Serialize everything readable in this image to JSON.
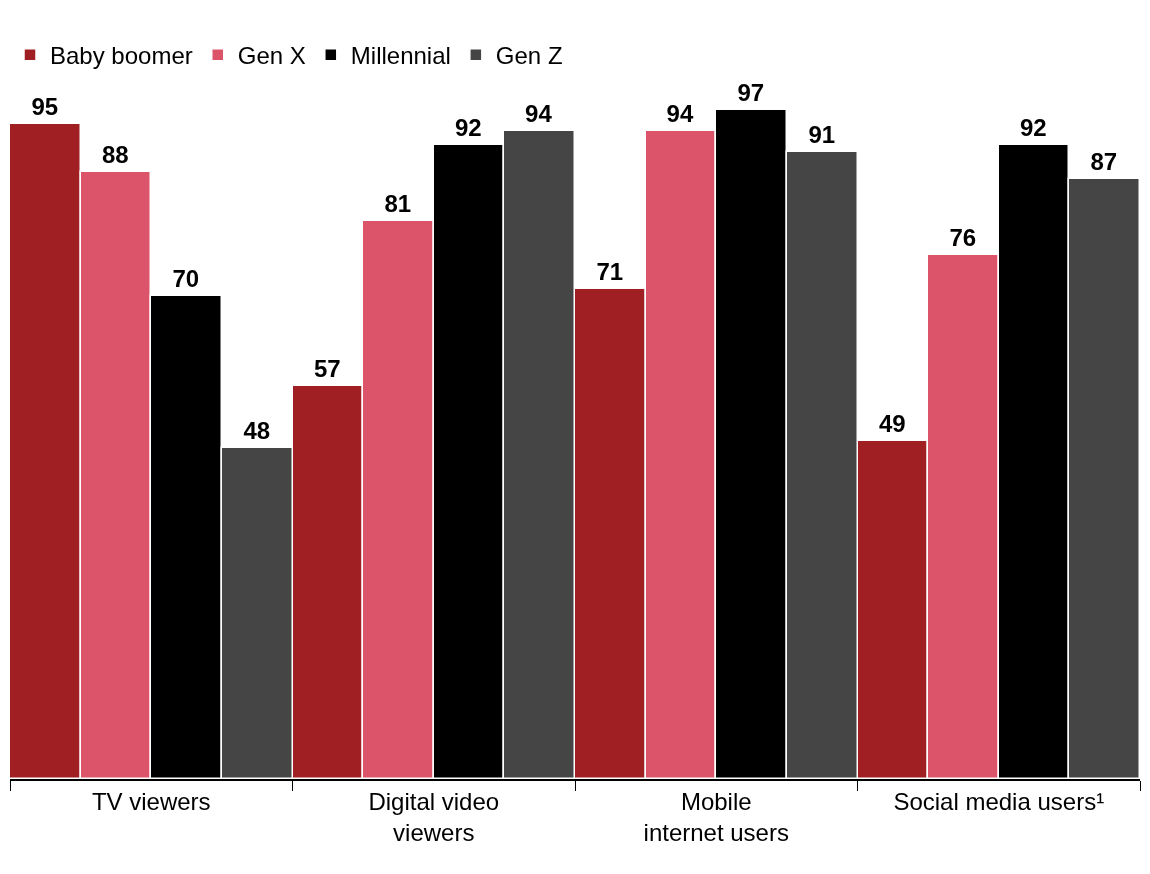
{
  "chart_data": {
    "type": "bar",
    "categories": [
      "TV viewers",
      "Digital video\nviewers",
      "Mobile\ninternet users",
      "Social media users¹"
    ],
    "series": [
      {
        "name": "Baby boomer",
        "color": "#a01f22",
        "values": [
          95,
          57,
          71,
          49
        ]
      },
      {
        "name": "Gen X",
        "color": "#dc546a",
        "values": [
          88,
          81,
          94,
          76
        ]
      },
      {
        "name": "Millennial",
        "color": "#000000",
        "values": [
          70,
          92,
          97,
          92
        ]
      },
      {
        "name": "Gen Z",
        "color": "#454545",
        "values": [
          48,
          94,
          91,
          87
        ]
      }
    ],
    "data_labels": true,
    "legend": "top left",
    "tick_labels": "x"
  }
}
